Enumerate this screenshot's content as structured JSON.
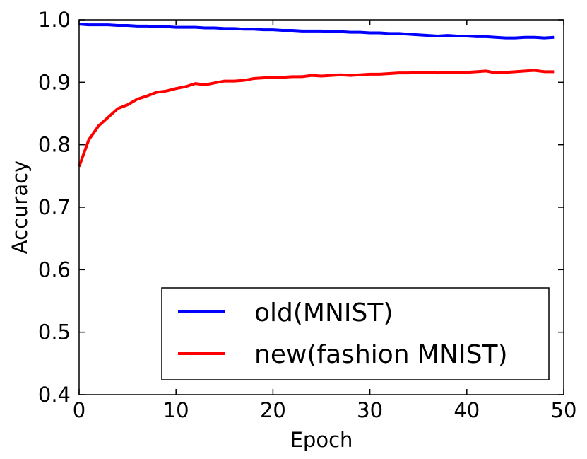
{
  "chart_data": {
    "type": "line",
    "title": "",
    "xlabel": "Epoch",
    "ylabel": "Accuracy",
    "xlim": [
      0,
      50
    ],
    "ylim": [
      0.4,
      1.0
    ],
    "xticks": [
      0,
      10,
      20,
      30,
      40,
      50
    ],
    "yticks": [
      0.4,
      0.5,
      0.6,
      0.7,
      0.8,
      0.9,
      1.0
    ],
    "xtick_labels": [
      "0",
      "10",
      "20",
      "30",
      "40",
      "50"
    ],
    "ytick_labels": [
      "0.4",
      "0.5",
      "0.6",
      "0.7",
      "0.8",
      "0.9",
      "1.0"
    ],
    "grid": false,
    "legend_position": "lower-right",
    "x": [
      0,
      1,
      2,
      3,
      4,
      5,
      6,
      7,
      8,
      9,
      10,
      11,
      12,
      13,
      14,
      15,
      16,
      17,
      18,
      19,
      20,
      21,
      22,
      23,
      24,
      25,
      26,
      27,
      28,
      29,
      30,
      31,
      32,
      33,
      34,
      35,
      36,
      37,
      38,
      39,
      40,
      41,
      42,
      43,
      44,
      45,
      46,
      47,
      48,
      49
    ],
    "series": [
      {
        "name": "old(MNIST)",
        "color": "#0000ff",
        "values": [
          0.993,
          0.992,
          0.992,
          0.992,
          0.991,
          0.991,
          0.99,
          0.99,
          0.989,
          0.989,
          0.988,
          0.988,
          0.988,
          0.987,
          0.987,
          0.986,
          0.986,
          0.985,
          0.985,
          0.984,
          0.984,
          0.983,
          0.983,
          0.982,
          0.982,
          0.982,
          0.981,
          0.981,
          0.98,
          0.98,
          0.979,
          0.979,
          0.978,
          0.978,
          0.977,
          0.976,
          0.975,
          0.974,
          0.975,
          0.974,
          0.974,
          0.973,
          0.973,
          0.972,
          0.971,
          0.971,
          0.972,
          0.972,
          0.971,
          0.972
        ]
      },
      {
        "name": "new(fashion MNIST)",
        "color": "#ff0000",
        "values": [
          0.765,
          0.808,
          0.83,
          0.844,
          0.858,
          0.864,
          0.873,
          0.878,
          0.884,
          0.886,
          0.89,
          0.893,
          0.898,
          0.896,
          0.899,
          0.902,
          0.902,
          0.903,
          0.906,
          0.907,
          0.908,
          0.908,
          0.909,
          0.909,
          0.911,
          0.91,
          0.911,
          0.912,
          0.911,
          0.912,
          0.913,
          0.913,
          0.914,
          0.915,
          0.915,
          0.916,
          0.916,
          0.915,
          0.916,
          0.916,
          0.916,
          0.917,
          0.918,
          0.915,
          0.916,
          0.917,
          0.918,
          0.919,
          0.917,
          0.917
        ]
      }
    ]
  }
}
